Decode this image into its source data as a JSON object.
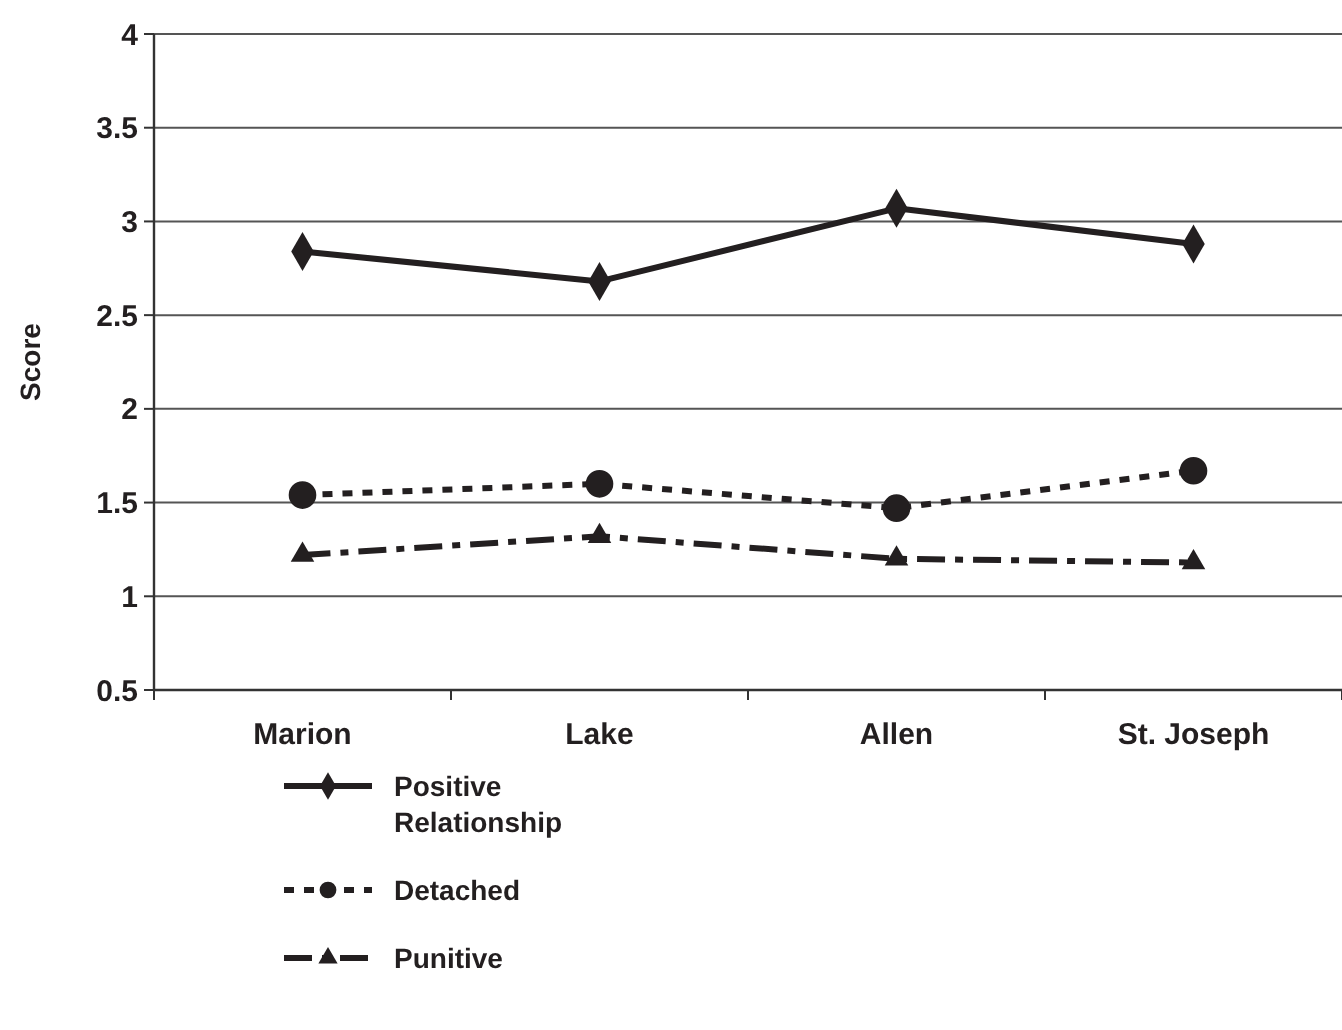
{
  "chart_data": {
    "type": "line",
    "ylabel": "Score",
    "categories": [
      "Marion",
      "Lake",
      "Allen",
      "St. Joseph"
    ],
    "series": [
      {
        "name": "Positive Relationship",
        "color": "#231f20",
        "values": [
          2.84,
          2.68,
          3.07,
          2.88
        ],
        "marker": "diamond",
        "line_style": "solid"
      },
      {
        "name": "Detached",
        "color": "#231f20",
        "values": [
          1.54,
          1.6,
          1.47,
          1.67
        ],
        "marker": "circle",
        "line_style": "dotted"
      },
      {
        "name": "Punitive",
        "color": "#231f20",
        "values": [
          1.22,
          1.32,
          1.2,
          1.18
        ],
        "marker": "triangle",
        "line_style": "dashed"
      }
    ],
    "ylim": [
      0.5,
      4
    ],
    "yticks": [
      0.5,
      1,
      1.5,
      2,
      2.5,
      3,
      3.5,
      4
    ],
    "grid": "y",
    "legend": "bottom"
  }
}
